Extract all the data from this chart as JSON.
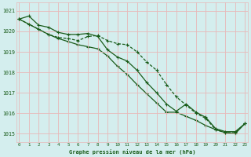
{
  "line1": [
    1020.6,
    1020.75,
    1020.3,
    1020.2,
    1019.95,
    1019.85,
    1019.85,
    1019.9,
    1019.75,
    1019.1,
    1018.75,
    1018.55,
    1018.1,
    1017.5,
    1017.0,
    1016.45,
    1016.1,
    1016.45,
    1016.05,
    1015.8,
    1015.25,
    1015.1,
    1015.1,
    1015.5
  ],
  "line2": [
    1020.6,
    1020.35,
    1020.1,
    1019.85,
    1019.7,
    1019.65,
    1019.55,
    1019.75,
    1019.8,
    1019.55,
    1019.4,
    1019.35,
    1019.0,
    1018.5,
    1018.1,
    1017.4,
    1016.8,
    1016.4,
    1016.0,
    1015.75,
    1015.2,
    1015.05,
    1015.05,
    1015.5
  ],
  "line3": [
    1020.6,
    1020.35,
    1020.1,
    1019.85,
    1019.65,
    1019.5,
    1019.35,
    1019.25,
    1019.15,
    1018.8,
    1018.3,
    1017.9,
    1017.4,
    1016.95,
    1016.5,
    1016.05,
    1016.05,
    1015.85,
    1015.65,
    1015.4,
    1015.2,
    1015.05,
    1015.0,
    1015.5
  ],
  "bg_color": "#d4eeee",
  "grid_color": "#e8b8b8",
  "line_color": "#1a5c1a",
  "title": "Graphe pression niveau de la mer (hPa)",
  "ylabel_ticks": [
    1015,
    1016,
    1017,
    1018,
    1019,
    1020,
    1021
  ],
  "xlabel_ticks": [
    0,
    1,
    2,
    3,
    4,
    5,
    6,
    7,
    8,
    9,
    10,
    11,
    12,
    13,
    14,
    15,
    16,
    17,
    18,
    19,
    20,
    21,
    22,
    23
  ],
  "ylim": [
    1014.6,
    1021.4
  ],
  "xlim": [
    -0.3,
    23.3
  ]
}
